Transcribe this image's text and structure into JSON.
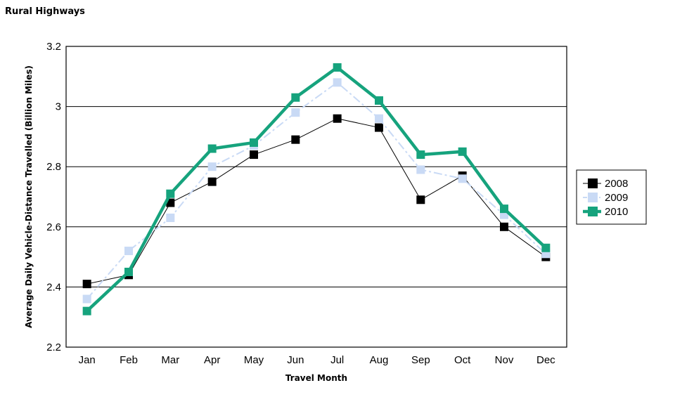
{
  "page": {
    "title": "Rural Highways"
  },
  "chart_data": {
    "type": "line",
    "title": "Rural Highways",
    "xlabel": "Travel Month",
    "ylabel": "Average Daily Vehicle-Distance Travelled (Billion Miles)",
    "categories": [
      "Jan",
      "Feb",
      "Mar",
      "Apr",
      "May",
      "Jun",
      "Jul",
      "Aug",
      "Sep",
      "Oct",
      "Nov",
      "Dec"
    ],
    "ylim": [
      2.2,
      3.2
    ],
    "yticks": [
      2.2,
      2.4,
      2.6,
      2.8,
      3,
      3.2
    ],
    "grid": "horizontal",
    "legend_position": "right",
    "series": [
      {
        "name": "2008",
        "color": "#000000",
        "style": "thin-solid",
        "values": [
          2.41,
          2.44,
          2.68,
          2.75,
          2.84,
          2.89,
          2.96,
          2.93,
          2.69,
          2.77,
          2.6,
          2.5
        ]
      },
      {
        "name": "2009",
        "color": "#c9daf5",
        "style": "dash-dot",
        "values": [
          2.36,
          2.52,
          2.63,
          2.8,
          2.87,
          2.98,
          3.08,
          2.96,
          2.79,
          2.76,
          2.64,
          2.51
        ]
      },
      {
        "name": "2010",
        "color": "#16a37d",
        "style": "thick-solid",
        "values": [
          2.32,
          2.45,
          2.71,
          2.86,
          2.88,
          3.03,
          3.13,
          3.02,
          2.84,
          2.85,
          2.66,
          2.53
        ]
      }
    ]
  }
}
